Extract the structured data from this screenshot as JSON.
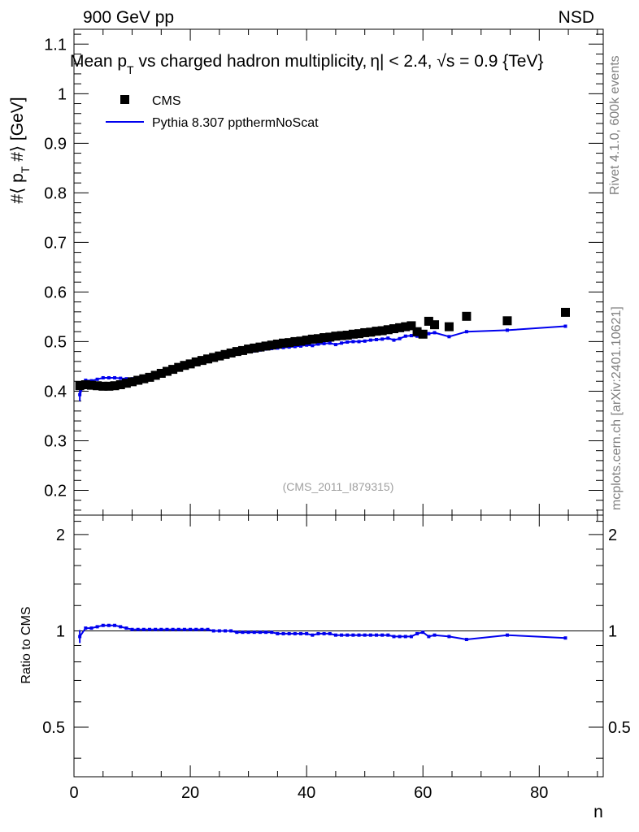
{
  "header": {
    "left_label": "900 GeV pp",
    "right_label": "NSD"
  },
  "side_text": {
    "rivet": "Rivet 4.1.0,  600k events",
    "mcplots": "mcplots.cern.ch [arXiv:2401.10621]"
  },
  "chart_data": {
    "type": "scatter",
    "title": "Mean p_T vs charged hadron multiplicity, |η| < 2.4, √s = 0.9 {TeV}",
    "title_parts": {
      "a": "Mean p",
      "a_sub": "T",
      "b": " vs charged hadron multiplicity,",
      "c": "η",
      "d": "| < 2.4, ",
      "e": "√",
      "f": "s = 0.9 {TeV}"
    },
    "watermark": "(CMS_2011_I879315)",
    "ylabel_parts": {
      "a": "#⟨ p",
      "sub": "T",
      "b": " #⟩ [GeV]"
    },
    "xlabel": "n",
    "ratio_ylabel": "Ratio to CMS",
    "xlim": [
      0,
      91
    ],
    "ylim": [
      0.15,
      1.13
    ],
    "ratio_ylim": [
      0.35,
      2.3
    ],
    "x_ticks": [
      "0",
      "20",
      "40",
      "60",
      "80"
    ],
    "y_ticks": [
      "0.2",
      "0.3",
      "0.4",
      "0.5",
      "0.6",
      "0.7",
      "0.8",
      "0.9",
      "1",
      "1.1"
    ],
    "ratio_ticks": [
      "0.5",
      "1",
      "2"
    ],
    "legend": {
      "position": "top-left",
      "cms_label": "CMS",
      "mc_label": "Pythia 8.307 ppthermNoScat"
    },
    "series": [
      {
        "name": "CMS",
        "color": "#000000",
        "points": [
          [
            1,
            0.411
          ],
          [
            2,
            0.413
          ],
          [
            3,
            0.412
          ],
          [
            4,
            0.411
          ],
          [
            5,
            0.41
          ],
          [
            6,
            0.41
          ],
          [
            7,
            0.411
          ],
          [
            8,
            0.413
          ],
          [
            9,
            0.416
          ],
          [
            10,
            0.419
          ],
          [
            11,
            0.422
          ],
          [
            12,
            0.425
          ],
          [
            13,
            0.428
          ],
          [
            14,
            0.432
          ],
          [
            15,
            0.436
          ],
          [
            16,
            0.44
          ],
          [
            17,
            0.444
          ],
          [
            18,
            0.448
          ],
          [
            19,
            0.452
          ],
          [
            20,
            0.455
          ],
          [
            21,
            0.459
          ],
          [
            22,
            0.462
          ],
          [
            23,
            0.465
          ],
          [
            24,
            0.468
          ],
          [
            25,
            0.471
          ],
          [
            26,
            0.474
          ],
          [
            27,
            0.477
          ],
          [
            28,
            0.48
          ],
          [
            29,
            0.482
          ],
          [
            30,
            0.485
          ],
          [
            31,
            0.487
          ],
          [
            32,
            0.489
          ],
          [
            33,
            0.491
          ],
          [
            34,
            0.493
          ],
          [
            35,
            0.495
          ],
          [
            36,
            0.497
          ],
          [
            37,
            0.498
          ],
          [
            38,
            0.5
          ],
          [
            39,
            0.501
          ],
          [
            40,
            0.503
          ],
          [
            41,
            0.505
          ],
          [
            42,
            0.506
          ],
          [
            43,
            0.508
          ],
          [
            44,
            0.509
          ],
          [
            45,
            0.511
          ],
          [
            46,
            0.512
          ],
          [
            47,
            0.513
          ],
          [
            48,
            0.515
          ],
          [
            49,
            0.516
          ],
          [
            50,
            0.518
          ],
          [
            51,
            0.519
          ],
          [
            52,
            0.521
          ],
          [
            53,
            0.522
          ],
          [
            54,
            0.524
          ],
          [
            55,
            0.526
          ],
          [
            56,
            0.528
          ],
          [
            57,
            0.53
          ],
          [
            58,
            0.532
          ],
          [
            59,
            0.52
          ],
          [
            60,
            0.515
          ],
          [
            61,
            0.541
          ],
          [
            62,
            0.534
          ],
          [
            64.5,
            0.53
          ],
          [
            67.5,
            0.551
          ],
          [
            74.5,
            0.542
          ],
          [
            84.5,
            0.559
          ]
        ]
      },
      {
        "name": "Pythia 8.307 ppthermNoScat",
        "color": "#0000ee",
        "points": [
          [
            1,
            0.393
          ],
          [
            2,
            0.422
          ],
          [
            3,
            0.421
          ],
          [
            4,
            0.424
          ],
          [
            5,
            0.427
          ],
          [
            6,
            0.427
          ],
          [
            7,
            0.427
          ],
          [
            8,
            0.426
          ],
          [
            9,
            0.425
          ],
          [
            10,
            0.425
          ],
          [
            11,
            0.426
          ],
          [
            12,
            0.429
          ],
          [
            13,
            0.432
          ],
          [
            14,
            0.435
          ],
          [
            15,
            0.439
          ],
          [
            16,
            0.443
          ],
          [
            17,
            0.447
          ],
          [
            18,
            0.452
          ],
          [
            19,
            0.456
          ],
          [
            20,
            0.46
          ],
          [
            21,
            0.463
          ],
          [
            22,
            0.466
          ],
          [
            23,
            0.468
          ],
          [
            24,
            0.47
          ],
          [
            25,
            0.472
          ],
          [
            26,
            0.474
          ],
          [
            27,
            0.476
          ],
          [
            28,
            0.477
          ],
          [
            29,
            0.478
          ],
          [
            30,
            0.48
          ],
          [
            31,
            0.481
          ],
          [
            32,
            0.483
          ],
          [
            33,
            0.485
          ],
          [
            34,
            0.486
          ],
          [
            35,
            0.487
          ],
          [
            36,
            0.488
          ],
          [
            37,
            0.489
          ],
          [
            38,
            0.49
          ],
          [
            39,
            0.491
          ],
          [
            40,
            0.493
          ],
          [
            41,
            0.492
          ],
          [
            42,
            0.495
          ],
          [
            43,
            0.496
          ],
          [
            44,
            0.497
          ],
          [
            45,
            0.494
          ],
          [
            46,
            0.497
          ],
          [
            47,
            0.499
          ],
          [
            48,
            0.5
          ],
          [
            49,
            0.5
          ],
          [
            50,
            0.501
          ],
          [
            51,
            0.503
          ],
          [
            52,
            0.504
          ],
          [
            53,
            0.505
          ],
          [
            54,
            0.507
          ],
          [
            55,
            0.503
          ],
          [
            56,
            0.506
          ],
          [
            57,
            0.511
          ],
          [
            58,
            0.512
          ],
          [
            59,
            0.511
          ],
          [
            60,
            0.514
          ],
          [
            61,
            0.516
          ],
          [
            62,
            0.518
          ],
          [
            64.5,
            0.51
          ],
          [
            67.5,
            0.52
          ],
          [
            74.5,
            0.523
          ],
          [
            84.5,
            0.531
          ]
        ]
      }
    ],
    "ratio": {
      "reference": 1,
      "points": [
        [
          1,
          0.96
        ],
        [
          2,
          1.02
        ],
        [
          3,
          1.02
        ],
        [
          4,
          1.03
        ],
        [
          5,
          1.04
        ],
        [
          6,
          1.04
        ],
        [
          7,
          1.04
        ],
        [
          8,
          1.03
        ],
        [
          9,
          1.02
        ],
        [
          10,
          1.01
        ],
        [
          11,
          1.01
        ],
        [
          12,
          1.01
        ],
        [
          13,
          1.01
        ],
        [
          14,
          1.01
        ],
        [
          15,
          1.01
        ],
        [
          16,
          1.01
        ],
        [
          17,
          1.01
        ],
        [
          18,
          1.01
        ],
        [
          19,
          1.01
        ],
        [
          20,
          1.01
        ],
        [
          21,
          1.01
        ],
        [
          22,
          1.01
        ],
        [
          23,
          1.01
        ],
        [
          24,
          1.0
        ],
        [
          25,
          1.0
        ],
        [
          26,
          1.0
        ],
        [
          27,
          1.0
        ],
        [
          28,
          0.99
        ],
        [
          29,
          0.99
        ],
        [
          30,
          0.99
        ],
        [
          31,
          0.99
        ],
        [
          32,
          0.99
        ],
        [
          33,
          0.99
        ],
        [
          34,
          0.99
        ],
        [
          35,
          0.98
        ],
        [
          36,
          0.98
        ],
        [
          37,
          0.98
        ],
        [
          38,
          0.98
        ],
        [
          39,
          0.98
        ],
        [
          40,
          0.98
        ],
        [
          41,
          0.97
        ],
        [
          42,
          0.98
        ],
        [
          43,
          0.98
        ],
        [
          44,
          0.98
        ],
        [
          45,
          0.97
        ],
        [
          46,
          0.97
        ],
        [
          47,
          0.97
        ],
        [
          48,
          0.97
        ],
        [
          49,
          0.97
        ],
        [
          50,
          0.97
        ],
        [
          51,
          0.97
        ],
        [
          52,
          0.97
        ],
        [
          53,
          0.97
        ],
        [
          54,
          0.97
        ],
        [
          55,
          0.96
        ],
        [
          56,
          0.96
        ],
        [
          57,
          0.96
        ],
        [
          58,
          0.96
        ],
        [
          59,
          0.98
        ],
        [
          60,
          0.99
        ],
        [
          61,
          0.96
        ],
        [
          62,
          0.97
        ],
        [
          64.5,
          0.96
        ],
        [
          67.5,
          0.94
        ],
        [
          74.5,
          0.97
        ],
        [
          84.5,
          0.95
        ]
      ]
    }
  }
}
